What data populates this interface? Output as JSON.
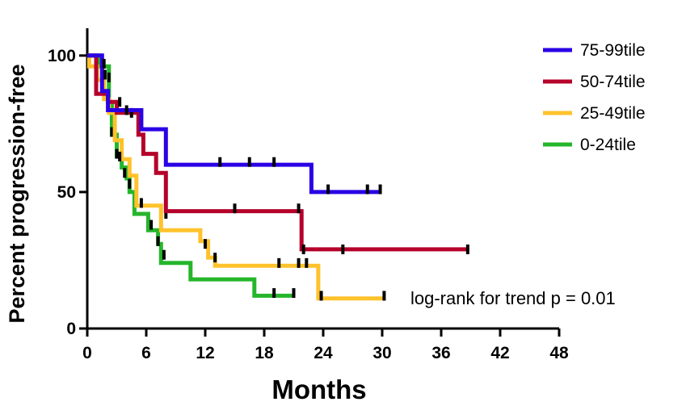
{
  "chart_data": {
    "type": "line",
    "subtype": "kaplan-meier step",
    "title": "",
    "xlabel": "Months",
    "ylabel": "Percent progression-free",
    "xlim": [
      0,
      48
    ],
    "ylim": [
      0,
      110
    ],
    "xticks": [
      0,
      6,
      12,
      18,
      24,
      30,
      36,
      42,
      48
    ],
    "yticks": [
      0,
      50,
      100
    ],
    "grid": false,
    "legend_position": "top-right",
    "annotation": "log-rank for trend p = 0.01",
    "series": [
      {
        "name": "75-99tile",
        "color": "#2B00E5",
        "steps": [
          [
            0,
            100
          ],
          [
            1.5,
            100
          ],
          [
            1.5,
            87
          ],
          [
            2.1,
            87
          ],
          [
            2.1,
            80
          ],
          [
            5.5,
            80
          ],
          [
            5.5,
            73
          ],
          [
            8,
            73
          ],
          [
            8,
            60
          ],
          [
            22.8,
            60
          ],
          [
            22.8,
            50
          ],
          [
            29.8,
            50
          ]
        ],
        "censored": [
          [
            1.7,
            97
          ],
          [
            1.8,
            93
          ],
          [
            4,
            80
          ],
          [
            13.5,
            61
          ],
          [
            16.5,
            61
          ],
          [
            19,
            61
          ],
          [
            24.5,
            51
          ],
          [
            28.5,
            51
          ],
          [
            29.8,
            51
          ]
        ]
      },
      {
        "name": "50-74tile",
        "color": "#B5002A",
        "steps": [
          [
            0,
            100
          ],
          [
            0.9,
            100
          ],
          [
            0.9,
            86
          ],
          [
            2.1,
            86
          ],
          [
            2.1,
            83
          ],
          [
            3,
            83
          ],
          [
            3,
            79
          ],
          [
            5.2,
            79
          ],
          [
            5.2,
            71
          ],
          [
            5.7,
            71
          ],
          [
            5.7,
            64
          ],
          [
            7,
            64
          ],
          [
            7,
            57
          ],
          [
            8,
            57
          ],
          [
            8,
            43
          ],
          [
            21.8,
            43
          ],
          [
            21.8,
            29
          ],
          [
            38.7,
            29
          ]
        ],
        "censored": [
          [
            3.3,
            83
          ],
          [
            4.5,
            79
          ],
          [
            15,
            44
          ],
          [
            21.5,
            44
          ],
          [
            22,
            29
          ],
          [
            26,
            29
          ],
          [
            38.7,
            29
          ]
        ]
      },
      {
        "name": "25-49tile",
        "color": "#FFC22B",
        "steps": [
          [
            0,
            100
          ],
          [
            0.2,
            100
          ],
          [
            0.2,
            96
          ],
          [
            1,
            96
          ],
          [
            1,
            91
          ],
          [
            1.7,
            91
          ],
          [
            1.7,
            84
          ],
          [
            2.2,
            84
          ],
          [
            2.2,
            79
          ],
          [
            2.8,
            79
          ],
          [
            2.8,
            69
          ],
          [
            3.5,
            69
          ],
          [
            3.5,
            62
          ],
          [
            4.3,
            62
          ],
          [
            4.3,
            56
          ],
          [
            5,
            56
          ],
          [
            5,
            45
          ],
          [
            7.5,
            45
          ],
          [
            7.5,
            36
          ],
          [
            11.5,
            36
          ],
          [
            11.5,
            32
          ],
          [
            12.3,
            32
          ],
          [
            12.3,
            26
          ],
          [
            13,
            26
          ],
          [
            13,
            23
          ],
          [
            23.5,
            23
          ],
          [
            23.5,
            11
          ],
          [
            30.2,
            11
          ]
        ],
        "censored": [
          [
            3.3,
            63
          ],
          [
            4.3,
            53
          ],
          [
            5.5,
            46
          ],
          [
            8,
            42
          ],
          [
            12,
            31
          ],
          [
            13,
            26
          ],
          [
            19.5,
            24
          ],
          [
            21.5,
            24
          ],
          [
            22.3,
            24
          ],
          [
            23.8,
            12
          ],
          [
            30.2,
            12
          ]
        ]
      },
      {
        "name": "0-24tile",
        "color": "#25B52B",
        "steps": [
          [
            0,
            100
          ],
          [
            1.3,
            100
          ],
          [
            1.3,
            96
          ],
          [
            2.2,
            96
          ],
          [
            2.2,
            82
          ],
          [
            2.5,
            82
          ],
          [
            2.5,
            71
          ],
          [
            3,
            71
          ],
          [
            3,
            63
          ],
          [
            3.5,
            63
          ],
          [
            3.5,
            59
          ],
          [
            4,
            59
          ],
          [
            4,
            55
          ],
          [
            4.3,
            55
          ],
          [
            4.3,
            50
          ],
          [
            4.8,
            50
          ],
          [
            4.8,
            42
          ],
          [
            6.2,
            42
          ],
          [
            6.2,
            36
          ],
          [
            7.2,
            36
          ],
          [
            7.2,
            31
          ],
          [
            7.5,
            31
          ],
          [
            7.5,
            24
          ],
          [
            10.5,
            24
          ],
          [
            10.5,
            18
          ],
          [
            17,
            18
          ],
          [
            17,
            12
          ],
          [
            21,
            12
          ]
        ],
        "censored": [
          [
            1.5,
            97
          ],
          [
            2.2,
            92
          ],
          [
            2.5,
            72
          ],
          [
            3,
            64
          ],
          [
            3.8,
            57
          ],
          [
            6.5,
            38
          ],
          [
            7.2,
            32
          ],
          [
            7.8,
            27
          ],
          [
            19,
            13
          ],
          [
            21,
            13
          ]
        ]
      }
    ]
  }
}
